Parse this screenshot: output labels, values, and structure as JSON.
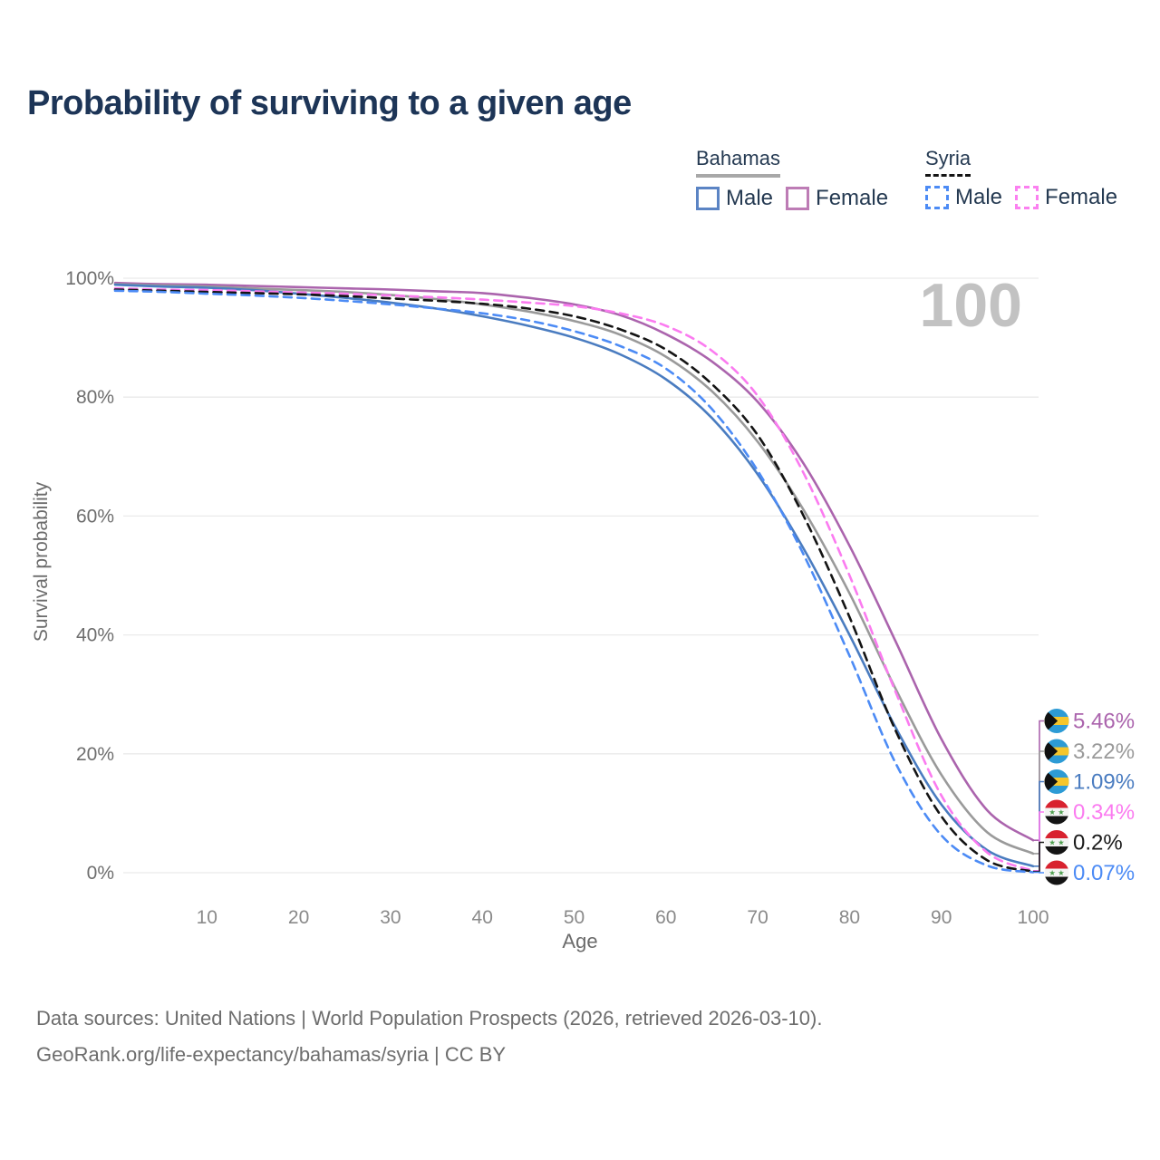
{
  "title": "Probability of surviving to a given age",
  "watermark": "100",
  "legend": {
    "groups": [
      {
        "name": "Bahamas",
        "underline_style": "solid",
        "underline_color": "#a8a8a8",
        "items": [
          {
            "label": "Male",
            "color": "#5b84c4",
            "dash": false
          },
          {
            "label": "Female",
            "color": "#bd7cb5",
            "dash": false
          }
        ]
      },
      {
        "name": "Syria",
        "underline_style": "dashed",
        "underline_color": "#141414",
        "items": [
          {
            "label": "Male",
            "color": "#4c8bf5",
            "dash": true
          },
          {
            "label": "Female",
            "color": "#fb80f0",
            "dash": true
          }
        ]
      }
    ]
  },
  "chart_data": {
    "type": "line",
    "title": "Probability of surviving to a given age",
    "xlabel": "Age",
    "ylabel": "Survival probability",
    "xlim": [
      0,
      100
    ],
    "ylim": [
      0,
      100
    ],
    "grid": "horizontal",
    "x_ticks": [
      10,
      20,
      30,
      40,
      50,
      60,
      70,
      80,
      90,
      100
    ],
    "y_ticks": [
      0,
      20,
      40,
      60,
      80,
      100
    ],
    "y_tick_labels": [
      "0%",
      "20%",
      "40%",
      "60%",
      "80%",
      "100%"
    ],
    "x": [
      0,
      5,
      10,
      15,
      20,
      25,
      30,
      35,
      40,
      45,
      50,
      55,
      60,
      65,
      70,
      75,
      80,
      85,
      90,
      95,
      100
    ],
    "series": [
      {
        "name": "Bahamas Female",
        "color": "#ab64ad",
        "dash": false,
        "values": [
          99.2,
          99.0,
          98.9,
          98.7,
          98.5,
          98.3,
          98.1,
          97.8,
          97.5,
          96.7,
          95.6,
          93.8,
          90.6,
          86.0,
          79.2,
          68.8,
          55.0,
          39.0,
          22.5,
          10.5,
          5.46
        ]
      },
      {
        "name": "Bahamas Total",
        "color": "#9a9a9a",
        "dash": false,
        "values": [
          99.0,
          98.8,
          98.6,
          98.3,
          98.0,
          97.7,
          97.2,
          96.5,
          95.6,
          94.4,
          92.8,
          90.5,
          86.8,
          81.0,
          72.5,
          61.0,
          47.0,
          31.0,
          16.5,
          6.8,
          3.22
        ]
      },
      {
        "name": "Bahamas Male",
        "color": "#4a7cc0",
        "dash": false,
        "values": [
          98.9,
          98.6,
          98.4,
          98.0,
          97.4,
          96.7,
          95.9,
          94.9,
          93.6,
          92.0,
          90.0,
          87.2,
          83.0,
          76.5,
          67.0,
          54.5,
          40.0,
          24.5,
          11.5,
          3.8,
          1.09
        ]
      },
      {
        "name": "Syria Female",
        "color": "#fb7bf0",
        "dash": true,
        "values": [
          98.3,
          98.1,
          98.0,
          97.8,
          97.6,
          97.4,
          97.1,
          96.8,
          96.4,
          95.9,
          95.3,
          94.1,
          92.0,
          87.8,
          80.2,
          67.2,
          50.0,
          30.5,
          13.0,
          3.4,
          0.34
        ]
      },
      {
        "name": "Syria Total",
        "color": "#141414",
        "dash": true,
        "values": [
          98.1,
          97.9,
          97.7,
          97.5,
          97.3,
          97.0,
          96.6,
          96.2,
          95.7,
          94.9,
          93.6,
          91.4,
          88.0,
          82.2,
          73.6,
          60.0,
          43.0,
          24.0,
          9.5,
          2.1,
          0.2
        ]
      },
      {
        "name": "Syria Male",
        "color": "#4c8bf5",
        "dash": true,
        "values": [
          97.9,
          97.7,
          97.4,
          97.1,
          96.7,
          96.2,
          95.6,
          94.9,
          94.1,
          92.9,
          91.1,
          88.6,
          84.8,
          78.0,
          67.6,
          53.5,
          36.5,
          18.5,
          6.3,
          1.2,
          0.07
        ]
      }
    ],
    "end_labels": [
      {
        "value": "5.46%",
        "flag": "bahamas",
        "color": "#ab64ad",
        "series": "Bahamas Female"
      },
      {
        "value": "3.22%",
        "flag": "bahamas",
        "color": "#9a9a9a",
        "series": "Bahamas Total"
      },
      {
        "value": "1.09%",
        "flag": "bahamas",
        "color": "#4a7cc0",
        "series": "Bahamas Male"
      },
      {
        "value": "0.34%",
        "flag": "syria",
        "color": "#fb7bf0",
        "series": "Syria Female"
      },
      {
        "value": "0.2%",
        "flag": "syria",
        "color": "#1a1a1a",
        "series": "Syria Total"
      },
      {
        "value": "0.07%",
        "flag": "syria",
        "color": "#4c8bf5",
        "series": "Syria Male"
      }
    ]
  },
  "footer": {
    "line1": "Data sources: United Nations | World Population Prospects (2026, retrieved 2026-03-10).",
    "line2": "GeoRank.org/life-expectancy/bahamas/syria | CC BY"
  }
}
